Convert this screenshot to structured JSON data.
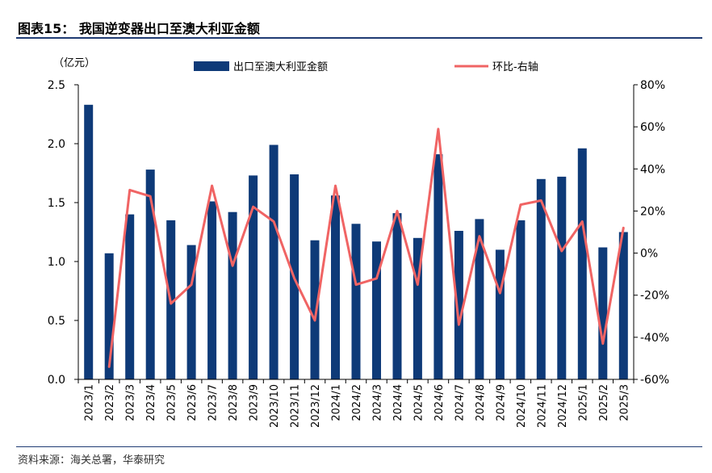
{
  "header": {
    "title": "图表15： 我国逆变器出口至澳大利亚金额"
  },
  "footer": {
    "source": "资料来源：海关总署，华泰研究"
  },
  "colors": {
    "bar": "#0e3a78",
    "line": "#f06464",
    "rule": "#1f3b73",
    "axis": "#000000"
  },
  "chart_data": {
    "type": "bar",
    "title": "我国逆变器出口至澳大利亚金额",
    "unit_label": "（亿元）",
    "categories": [
      "2023/1",
      "2023/2",
      "2023/3",
      "2023/4",
      "2023/5",
      "2023/6",
      "2023/7",
      "2023/8",
      "2023/9",
      "2023/10",
      "2023/11",
      "2023/12",
      "2024/1",
      "2024/2",
      "2024/3",
      "2024/4",
      "2024/5",
      "2024/6",
      "2024/7",
      "2024/8",
      "2024/9",
      "2024/10",
      "2024/11",
      "2024/12",
      "2025/1",
      "2025/2",
      "2025/3"
    ],
    "series": [
      {
        "name": "出口至澳大利亚金额",
        "type": "bar",
        "axis": "left",
        "values": [
          2.33,
          1.07,
          1.4,
          1.78,
          1.35,
          1.14,
          1.51,
          1.42,
          1.73,
          1.99,
          1.74,
          1.18,
          1.56,
          1.32,
          1.17,
          1.41,
          1.2,
          1.91,
          1.26,
          1.36,
          1.1,
          1.35,
          1.7,
          1.72,
          1.96,
          1.12,
          1.25
        ]
      },
      {
        "name": "环比-右轴",
        "type": "line",
        "axis": "right",
        "values": [
          null,
          -54,
          30,
          27,
          -24,
          -15,
          32,
          -6,
          22,
          15,
          -12,
          -32,
          32,
          -15,
          -12,
          20,
          -15,
          59,
          -34,
          8,
          -19,
          23,
          25,
          1,
          15,
          -43,
          12
        ]
      }
    ],
    "y_left": {
      "min": 0,
      "max": 2.5,
      "ticks": [
        0.0,
        0.5,
        1.0,
        1.5,
        2.0,
        2.5
      ],
      "tick_labels": [
        "0.0",
        "0.5",
        "1.0",
        "1.5",
        "2.0",
        "2.5"
      ]
    },
    "y_right": {
      "min": -60,
      "max": 80,
      "ticks": [
        -60,
        -40,
        -20,
        0,
        20,
        40,
        60,
        80
      ],
      "tick_labels": [
        "-60%",
        "-40%",
        "-20%",
        "0%",
        "20%",
        "40%",
        "60%",
        "80%"
      ]
    },
    "legend_position": "top",
    "grid": false
  }
}
